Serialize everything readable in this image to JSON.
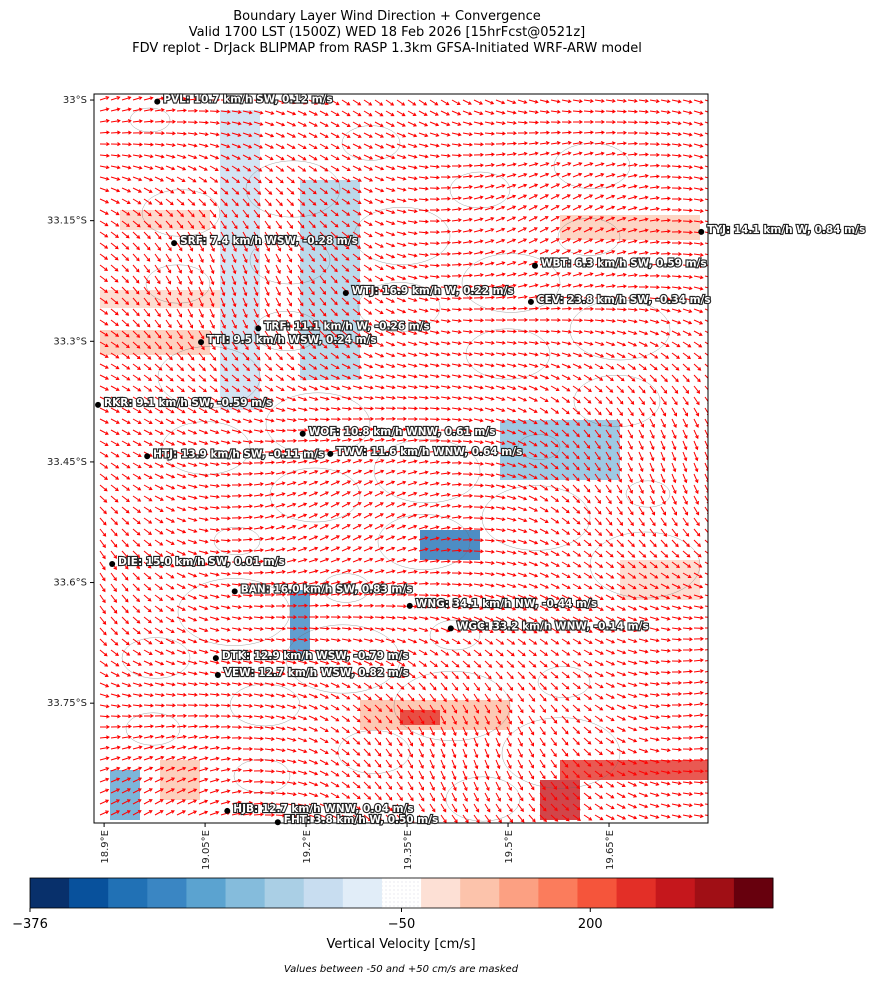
{
  "chart_data": {
    "type": "wind-map",
    "title": [
      "Boundary Layer Wind Direction + Convergence",
      "Valid 1700 LST (1500Z) WED 18 Feb 2026 [15hrFcst@0521z]",
      "FDV replot - DrJack BLIPMAP from RASP 1.3km GFSA-Initiated WRF-ARW model"
    ],
    "xlim": [
      18.885,
      19.797
    ],
    "ylim": [
      -33.899,
      -32.9925
    ],
    "xticks": [
      {
        "value": 18.9,
        "label": "18.9°E"
      },
      {
        "value": 19.05,
        "label": "19.05°E"
      },
      {
        "value": 19.2,
        "label": "19.2°E"
      },
      {
        "value": 19.35,
        "label": "19.35°E"
      },
      {
        "value": 19.5,
        "label": "19.5°E"
      },
      {
        "value": 19.65,
        "label": "19.65°E"
      }
    ],
    "yticks": [
      {
        "value": -33,
        "label": "33°S"
      },
      {
        "value": -33.15,
        "label": "33.15°S"
      },
      {
        "value": -33.3,
        "label": "33.3°S"
      },
      {
        "value": -33.45,
        "label": "33.45°S"
      },
      {
        "value": -33.6,
        "label": "33.6°S"
      },
      {
        "value": -33.75,
        "label": "33.75°S"
      }
    ],
    "arrow_color": "#ff0000",
    "stations": [
      {
        "label": "PVL: 10.7 km/h SW, 0.12 m/s",
        "lon": 18.979,
        "lat": -33.002
      },
      {
        "label": "SRF: 7.4 km/h WSW, -0.28 m/s",
        "lon": 19.004,
        "lat": -33.178
      },
      {
        "label": "WTJ: 16.9 km/h W, 0.22 m/s",
        "lon": 19.259,
        "lat": -33.24
      },
      {
        "label": "TRF: 11.1 km/h W, -0.26 m/s",
        "lon": 19.129,
        "lat": -33.284
      },
      {
        "label": "TTI: 9.5 km/h WSW, 0.24 m/s",
        "lon": 19.044,
        "lat": -33.301
      },
      {
        "label": "RKR: 9.1 km/h SW, -0.59 m/s",
        "lon": 18.891,
        "lat": -33.379
      },
      {
        "label": "WOF: 10.8 km/h WNW, 0.61 m/s",
        "lon": 19.195,
        "lat": -33.415
      },
      {
        "label": "HTJ: 13.9 km/h SW, -0.11 m/s",
        "lon": 18.964,
        "lat": -33.443
      },
      {
        "label": "TWV: 11.6 km/h WNW, 0.64 m/s",
        "lon": 19.236,
        "lat": -33.44
      },
      {
        "label": "TYJ: 14.1 km/h W, 0.84 m/s",
        "lon": 19.787,
        "lat": -33.164
      },
      {
        "label": "WBT: 6.3 km/h SW, 0.59 m/s",
        "lon": 19.54,
        "lat": -33.206
      },
      {
        "label": "CEV: 23.8 km/h SW, -0.34 m/s",
        "lon": 19.534,
        "lat": -33.251
      },
      {
        "label": "DIE: 15.0 km/h SW, 0.01 m/s",
        "lon": 18.912,
        "lat": -33.577
      },
      {
        "label": "BAN: 16.0 km/h SW, 0.83 m/s",
        "lon": 19.094,
        "lat": -33.611
      },
      {
        "label": "WNG: 34.1 km/h NW, -0.44 m/s",
        "lon": 19.354,
        "lat": -33.629
      },
      {
        "label": "WGC: 33.2 km/h WNW, -0.14 m/s",
        "lon": 19.415,
        "lat": -33.657
      },
      {
        "label": "DTK: 12.9 km/h WSW, -0.79 m/s",
        "lon": 19.066,
        "lat": -33.694
      },
      {
        "label": "VEW: 12.7 km/h WSW, 0.82 m/s",
        "lon": 19.069,
        "lat": -33.715
      },
      {
        "label": "HJB: 12.7 km/h WNW, 0.04 m/s",
        "lon": 19.083,
        "lat": -33.884
      },
      {
        "label": "FHT: 3.8 km/h W, 0.50 m/s",
        "lon": 19.158,
        "lat": -33.898
      }
    ],
    "colorbar": {
      "label": "Vertical Velocity [cm/s]",
      "vmin": -376,
      "vcenter": -50,
      "vmax": 442,
      "ticks": [
        {
          "value": -376,
          "label": "−376"
        },
        {
          "value": -50,
          "label": "−50"
        },
        {
          "value": 200,
          "label": "200"
        }
      ],
      "colors": [
        "#08306b",
        "#08519c",
        "#2171b5",
        "#3a86c3",
        "#5ba3d0",
        "#85bcdc",
        "#aacfe5",
        "#c8ddf0",
        "#e1edf8",
        "#ffffff",
        "#fde0d5",
        "#fcc3ab",
        "#fca082",
        "#fb7c5c",
        "#f5553b",
        "#e32f27",
        "#c5171c",
        "#a00f15",
        "#67000d"
      ]
    },
    "note": "Values between -50 and +50 cm/s are masked"
  }
}
